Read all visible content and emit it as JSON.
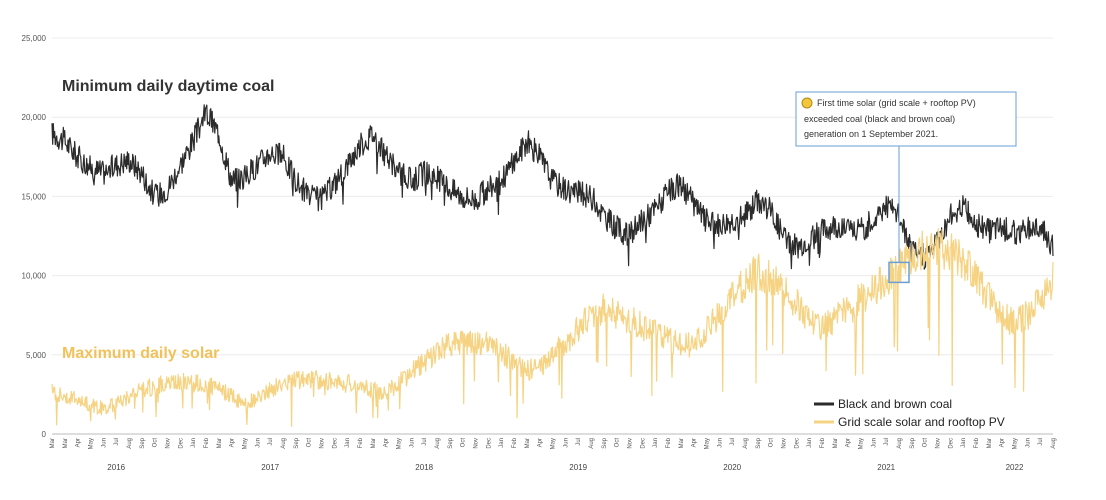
{
  "chart_data": {
    "type": "line",
    "title_coal": "Minimum daily daytime coal",
    "title_solar": "Maximum daily solar",
    "ylim": [
      0,
      25000
    ],
    "y_ticks": [
      "0",
      "5,000",
      "10,000",
      "15,000",
      "20,000",
      "25,000"
    ],
    "y_tick_values": [
      0,
      5000,
      10000,
      15000,
      20000,
      25000
    ],
    "months": [
      "Mar",
      "Mar",
      "Apr",
      "May",
      "Jun",
      "Jul",
      "Aug",
      "Sep",
      "Oct",
      "Nov",
      "Dec",
      "Jan",
      "Feb",
      "Mar",
      "Apr",
      "May",
      "Jun",
      "Jul",
      "Aug",
      "Sep",
      "Oct",
      "Nov",
      "Dec",
      "Jan",
      "Feb",
      "Mar",
      "Apr",
      "May",
      "Jun",
      "Jul",
      "Aug",
      "Sep",
      "Oct",
      "Nov",
      "Dec",
      "Jan",
      "Feb",
      "Mar",
      "Apr",
      "May",
      "Jun",
      "Jul",
      "Aug",
      "Sep",
      "Oct",
      "Nov",
      "Dec",
      "Jan",
      "Feb",
      "Mar",
      "Apr",
      "May",
      "Jun",
      "Jul",
      "Aug",
      "Sep",
      "Oct",
      "Nov",
      "Dec",
      "Jan",
      "Feb",
      "Mar",
      "Apr",
      "May",
      "Jun",
      "Jul",
      "Aug",
      "Sep",
      "Oct",
      "Nov",
      "Dec",
      "Jan",
      "Feb",
      "Mar",
      "Apr",
      "May",
      "Jun",
      "Jul",
      "Aug"
    ],
    "years": [
      {
        "label": "2016",
        "month_index": 5
      },
      {
        "label": "2017",
        "month_index": 17
      },
      {
        "label": "2018",
        "month_index": 29
      },
      {
        "label": "2019",
        "month_index": 41
      },
      {
        "label": "2020",
        "month_index": 53
      },
      {
        "label": "2021",
        "month_index": 65
      },
      {
        "label": "2022",
        "month_index": 75
      }
    ],
    "series": [
      {
        "name": "Black and brown coal",
        "color": "#2b2b2b",
        "monthly_values": [
          19000,
          18500,
          17500,
          16800,
          16500,
          17000,
          17300,
          16500,
          15000,
          15500,
          17000,
          18500,
          20300,
          19000,
          16000,
          16200,
          17000,
          17800,
          17500,
          16000,
          15000,
          14800,
          15800,
          17000,
          18200,
          19000,
          17500,
          16500,
          16000,
          16500,
          16200,
          15500,
          15000,
          14800,
          15500,
          16000,
          17200,
          18500,
          17500,
          16000,
          15500,
          15200,
          15000,
          13800,
          13000,
          12500,
          13500,
          14200,
          15200,
          15800,
          14500,
          13500,
          13200,
          13500,
          13800,
          14800,
          14200,
          12500,
          11800,
          12300,
          12800,
          13200,
          13000,
          12800,
          13500,
          14500,
          13800,
          11500,
          11200,
          12200,
          13800,
          14500,
          13200,
          12800,
          13000,
          12700,
          13000,
          13200,
          11800
        ]
      },
      {
        "name": "Grid scale solar and rooftop PV",
        "color": "#f6d383",
        "monthly_values": [
          2700,
          2400,
          2200,
          1800,
          1600,
          1900,
          2400,
          2800,
          3000,
          3200,
          3300,
          3200,
          3100,
          2800,
          2400,
          1900,
          2200,
          2800,
          3200,
          3400,
          3500,
          3400,
          3300,
          3200,
          3000,
          2800,
          2600,
          3200,
          3900,
          4500,
          5200,
          5600,
          5900,
          5800,
          5600,
          5200,
          4500,
          4000,
          4200,
          5000,
          5800,
          6600,
          7500,
          7900,
          7600,
          7200,
          6800,
          6400,
          6000,
          5800,
          5500,
          6500,
          7500,
          8500,
          9500,
          10300,
          9800,
          9000,
          8200,
          7300,
          6800,
          7200,
          7800,
          8500,
          9200,
          9800,
          10400,
          11000,
          11800,
          12000,
          11500,
          10800,
          9800,
          8800,
          7600,
          7000,
          7500,
          8500,
          9800
        ]
      }
    ],
    "annotation": {
      "lines": [
        "First time solar (grid scale + rooftop PV)",
        "exceeded coal (black and brown coal)",
        "generation on 1 September 2021."
      ],
      "month_index": 66,
      "value": 10200
    },
    "legend": {
      "placement": "bottom-right",
      "items": [
        "Black and brown coal",
        "Grid scale solar and rooftop PV"
      ]
    }
  }
}
